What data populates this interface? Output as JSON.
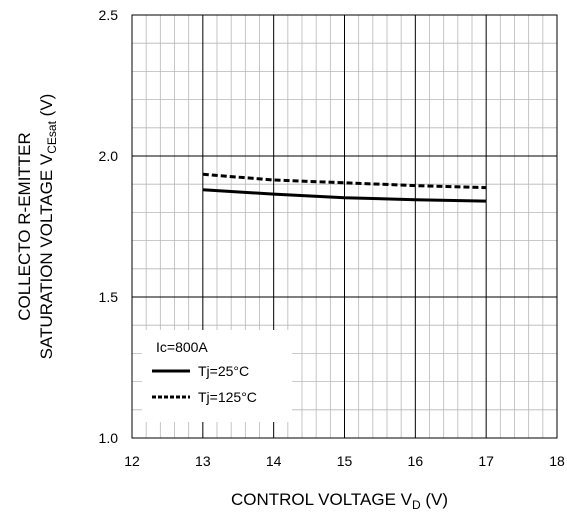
{
  "chart_data": {
    "type": "line",
    "xlabel": {
      "main": "CONTROL VOLTAGE V",
      "sub": "D",
      "unit": " (V)"
    },
    "ylabel": {
      "line1": "COLLECTO R-EMITTER",
      "line2_main": "SATURATION VOLTAGE V",
      "line2_sub": "CEsat",
      "line2_unit": " (V)"
    },
    "xlim": [
      12,
      18
    ],
    "ylim": [
      1.0,
      2.5
    ],
    "xticks": [
      12,
      13,
      14,
      15,
      16,
      17,
      18
    ],
    "yticks": [
      1.0,
      1.5,
      2.0,
      2.5
    ],
    "xtick_labels": [
      "12",
      "13",
      "14",
      "15",
      "16",
      "17",
      "18"
    ],
    "ytick_labels": [
      "1.0",
      "1.5",
      "2.0",
      "2.5"
    ],
    "grid": true,
    "legend": {
      "title": "Ic=800A",
      "placement": "bottom-left"
    },
    "series": [
      {
        "name": "Tj=25°C",
        "style": "solid",
        "x": [
          13,
          14,
          15,
          16,
          17
        ],
        "y": [
          1.88,
          1.865,
          1.852,
          1.845,
          1.84
        ]
      },
      {
        "name": "Tj=125°C",
        "style": "dashed",
        "x": [
          13,
          14,
          15,
          16,
          17
        ],
        "y": [
          1.935,
          1.915,
          1.905,
          1.895,
          1.888
        ]
      }
    ]
  }
}
